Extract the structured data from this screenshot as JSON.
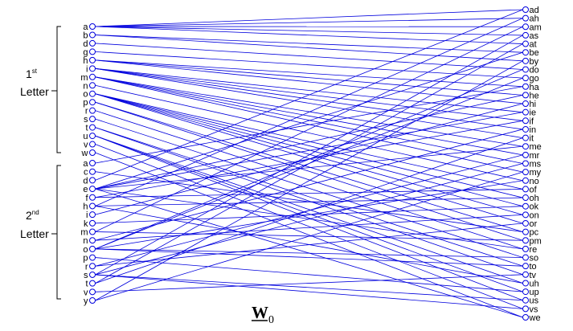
{
  "groups": {
    "first": {
      "ordinal": "1",
      "suffix": "st",
      "word": "Letter"
    },
    "second": {
      "ordinal": "2",
      "suffix": "nd",
      "word": "Letter"
    }
  },
  "left_nodes": {
    "first_letters": [
      "a",
      "b",
      "d",
      "g",
      "h",
      "i",
      "m",
      "n",
      "o",
      "p",
      "r",
      "s",
      "t",
      "u",
      "v",
      "w"
    ],
    "second_letters": [
      "a",
      "c",
      "d",
      "e",
      "f",
      "h",
      "i",
      "k",
      "m",
      "n",
      "o",
      "p",
      "r",
      "s",
      "t",
      "v",
      "y"
    ]
  },
  "right_nodes": [
    "ad",
    "ah",
    "am",
    "as",
    "at",
    "be",
    "by",
    "do",
    "go",
    "ha",
    "he",
    "hi",
    "ie",
    "if",
    "in",
    "it",
    "me",
    "mr",
    "ms",
    "my",
    "no",
    "of",
    "oh",
    "ok",
    "on",
    "or",
    "pc",
    "pm",
    "re",
    "so",
    "to",
    "tv",
    "uh",
    "up",
    "us",
    "vs",
    "we"
  ],
  "caption": {
    "main": "W",
    "sub": "0"
  },
  "colors": {
    "edge": "#0000dd",
    "node": "#0000dd",
    "text": "#000000"
  }
}
